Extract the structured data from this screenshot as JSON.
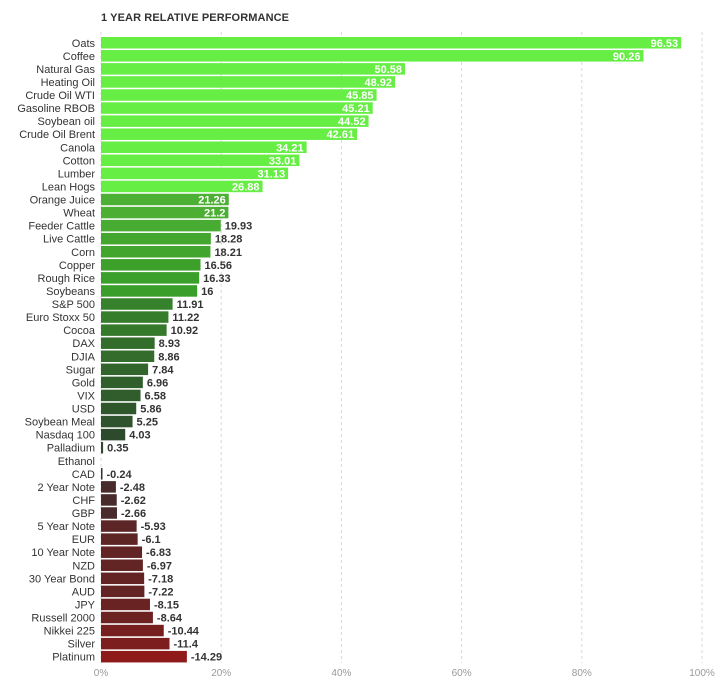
{
  "chart_data": {
    "type": "bar",
    "orientation": "horizontal",
    "title": "1 YEAR RELATIVE PERFORMANCE",
    "xlim": [
      0,
      100
    ],
    "xticks": [
      "0%",
      "20%",
      "40%",
      "60%",
      "80%",
      "100%"
    ],
    "grid": true,
    "categories": [
      "Oats",
      "Coffee",
      "Natural Gas",
      "Heating Oil",
      "Crude Oil WTI",
      "Gasoline RBOB",
      "Soybean oil",
      "Crude Oil Brent",
      "Canola",
      "Cotton",
      "Lumber",
      "Lean Hogs",
      "Orange Juice",
      "Wheat",
      "Feeder Cattle",
      "Live Cattle",
      "Corn",
      "Copper",
      "Rough Rice",
      "Soybeans",
      "S&P 500",
      "Euro Stoxx 50",
      "Cocoa",
      "DAX",
      "DJIA",
      "Sugar",
      "Gold",
      "VIX",
      "USD",
      "Soybean Meal",
      "Nasdaq 100",
      "Palladium",
      "Ethanol",
      "CAD",
      "2 Year Note",
      "CHF",
      "GBP",
      "5 Year Note",
      "EUR",
      "10 Year Note",
      "NZD",
      "30 Year Bond",
      "AUD",
      "JPY",
      "Russell 2000",
      "Nikkei 225",
      "Silver",
      "Platinum"
    ],
    "values": [
      96.53,
      90.26,
      50.58,
      48.92,
      45.85,
      45.21,
      44.52,
      42.61,
      34.21,
      33.01,
      31.13,
      26.88,
      21.26,
      21.2,
      19.93,
      18.28,
      18.21,
      16.56,
      16.33,
      16,
      11.91,
      11.22,
      10.92,
      8.93,
      8.86,
      7.84,
      6.96,
      6.58,
      5.86,
      5.25,
      4.03,
      0.35,
      null,
      -0.24,
      -2.48,
      -2.62,
      -2.66,
      -5.93,
      -6.1,
      -6.83,
      -6.97,
      -7.18,
      -7.22,
      -8.15,
      -8.64,
      -10.44,
      -11.4,
      -14.29
    ],
    "value_labels": [
      "96.53",
      "90.26",
      "50.58",
      "48.92",
      "45.85",
      "45.21",
      "44.52",
      "42.61",
      "34.21",
      "33.01",
      "31.13",
      "26.88",
      "21.26",
      "21.2",
      "19.93",
      "18.28",
      "18.21",
      "16.56",
      "16.33",
      "16",
      "11.91",
      "11.22",
      "10.92",
      "8.93",
      "8.86",
      "7.84",
      "6.96",
      "6.58",
      "5.86",
      "5.25",
      "4.03",
      "0.35",
      "",
      "-0.24",
      "-2.48",
      "-2.62",
      "-2.66",
      "-5.93",
      "-6.1",
      "-6.83",
      "-6.97",
      "-7.18",
      "-7.22",
      "-8.15",
      "-8.64",
      "-10.44",
      "-11.4",
      "-14.29"
    ],
    "colors": {
      "positive_strong": "#66ee44",
      "positive_mid": "#3a9e2a",
      "positive_weak": "#2e4a2c",
      "negative_weak": "#3a2e2e",
      "negative_strong": "#8e1a1a",
      "grid": "#d8d8d8"
    }
  }
}
